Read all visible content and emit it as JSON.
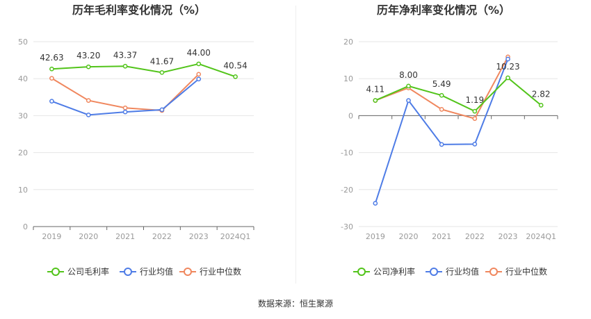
{
  "source_label": "数据来源：恒生聚源",
  "chart_data": [
    {
      "type": "line",
      "title": "历年毛利率变化情况（%）",
      "categories": [
        "2019",
        "2020",
        "2021",
        "2022",
        "2023",
        "2024Q1"
      ],
      "ylim": [
        0,
        50
      ],
      "yticks": [
        0,
        10,
        20,
        30,
        40,
        50
      ],
      "grid": true,
      "legend_position": "bottom",
      "series": [
        {
          "name": "公司毛利率",
          "color": "#52c41a",
          "values": [
            42.63,
            43.2,
            43.37,
            41.67,
            44.0,
            40.54
          ],
          "labels": [
            "42.63",
            "43.20",
            "43.37",
            "41.67",
            "44.00",
            "40.54"
          ]
        },
        {
          "name": "行业均值",
          "color": "#4e7ce6",
          "values": [
            33.9,
            30.2,
            31.0,
            31.6,
            39.9,
            null
          ]
        },
        {
          "name": "行业中位数",
          "color": "#f0875e",
          "values": [
            40.1,
            34.1,
            32.1,
            31.4,
            41.2,
            null
          ]
        }
      ]
    },
    {
      "type": "line",
      "title": "历年净利率变化情况（%）",
      "categories": [
        "2019",
        "2020",
        "2021",
        "2022",
        "2023",
        "2024Q1"
      ],
      "ylim": [
        -30,
        20
      ],
      "yticks": [
        -30,
        -20,
        -10,
        0,
        10,
        20
      ],
      "grid": true,
      "legend_position": "bottom",
      "series": [
        {
          "name": "公司净利率",
          "color": "#52c41a",
          "values": [
            4.11,
            8.0,
            5.49,
            1.19,
            10.23,
            2.82
          ],
          "labels": [
            "4.11",
            "8.00",
            "5.49",
            "1.19",
            "10.23",
            "2.82"
          ]
        },
        {
          "name": "行业均值",
          "color": "#4e7ce6",
          "values": [
            -23.7,
            4.1,
            -7.8,
            -7.7,
            15.3,
            null
          ]
        },
        {
          "name": "行业中位数",
          "color": "#f0875e",
          "values": [
            4.1,
            7.5,
            1.7,
            -0.8,
            15.9,
            null
          ]
        }
      ]
    }
  ]
}
